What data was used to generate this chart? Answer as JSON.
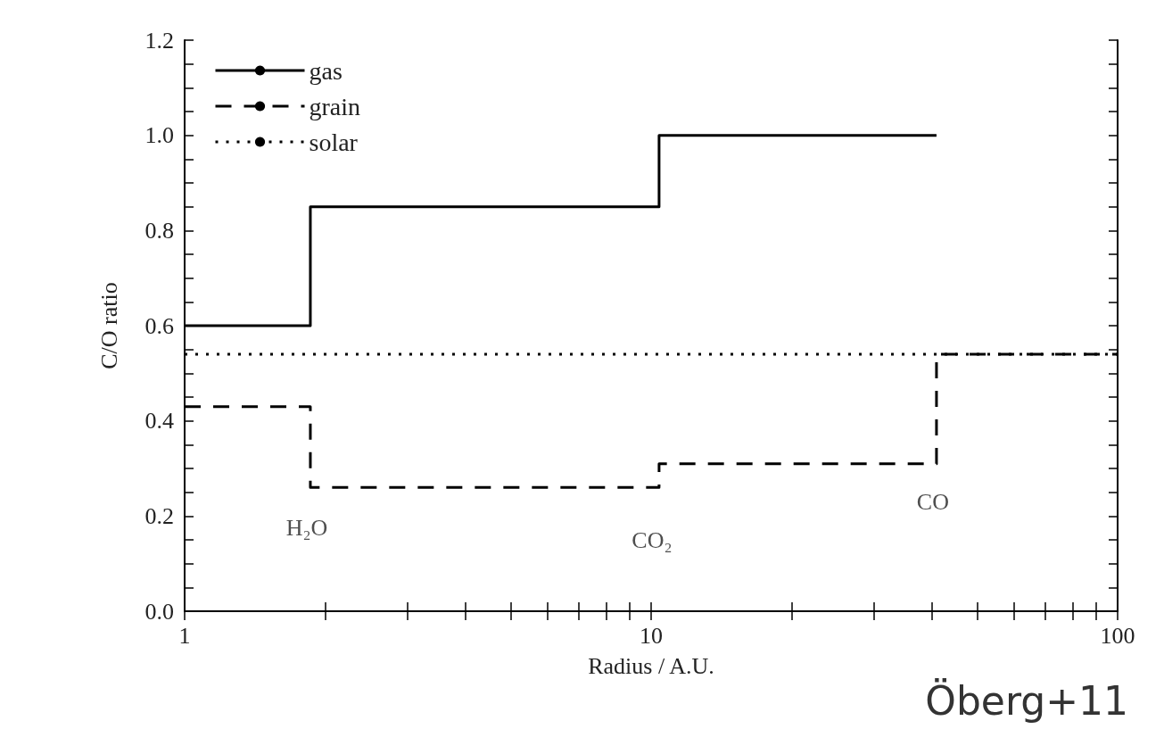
{
  "chart_data": {
    "type": "step",
    "xlabel": "Radius / A.U.",
    "ylabel": "C/O ratio",
    "log": "x",
    "xlim": [
      1,
      100
    ],
    "xticks": [
      1,
      10,
      100
    ],
    "ylim": [
      0,
      1.2
    ],
    "yticks": [
      {
        "value": 0,
        "label": "0.0"
      },
      0.2,
      0.4,
      0.6,
      0.8,
      {
        "value": 1,
        "label": "1.0"
      },
      {
        "value": 1.2,
        "label": "1.2"
      }
    ],
    "grid": false,
    "legend": "top left",
    "marker": "none",
    "series": [
      {
        "name": "gas",
        "color": "#000000",
        "line_style": "solid",
        "x": [
          1,
          1.86,
          10.4,
          40.9
        ],
        "values": [
          0.6,
          0.85,
          1.0,
          1.0
        ]
      },
      {
        "name": "grain",
        "color": "#000000",
        "line_style": "dashed",
        "x": [
          1,
          1.86,
          10.4,
          40.9,
          100
        ],
        "values": [
          0.43,
          0.26,
          0.31,
          0.54,
          0.54
        ]
      },
      {
        "name": "solar",
        "type": "line",
        "color": "#000000",
        "line_style": "dotted",
        "x": [
          1,
          100
        ],
        "values": [
          0.54,
          0.54
        ]
      }
    ],
    "annotations": [
      {
        "text": "H₂O",
        "x": 1.86,
        "y": 0.26
      },
      {
        "text": "CO₂",
        "x": 10.4,
        "y": 0.26
      },
      {
        "text": "CO",
        "x": 40.9,
        "y": 0.31
      },
      "Öberg+11"
    ]
  }
}
